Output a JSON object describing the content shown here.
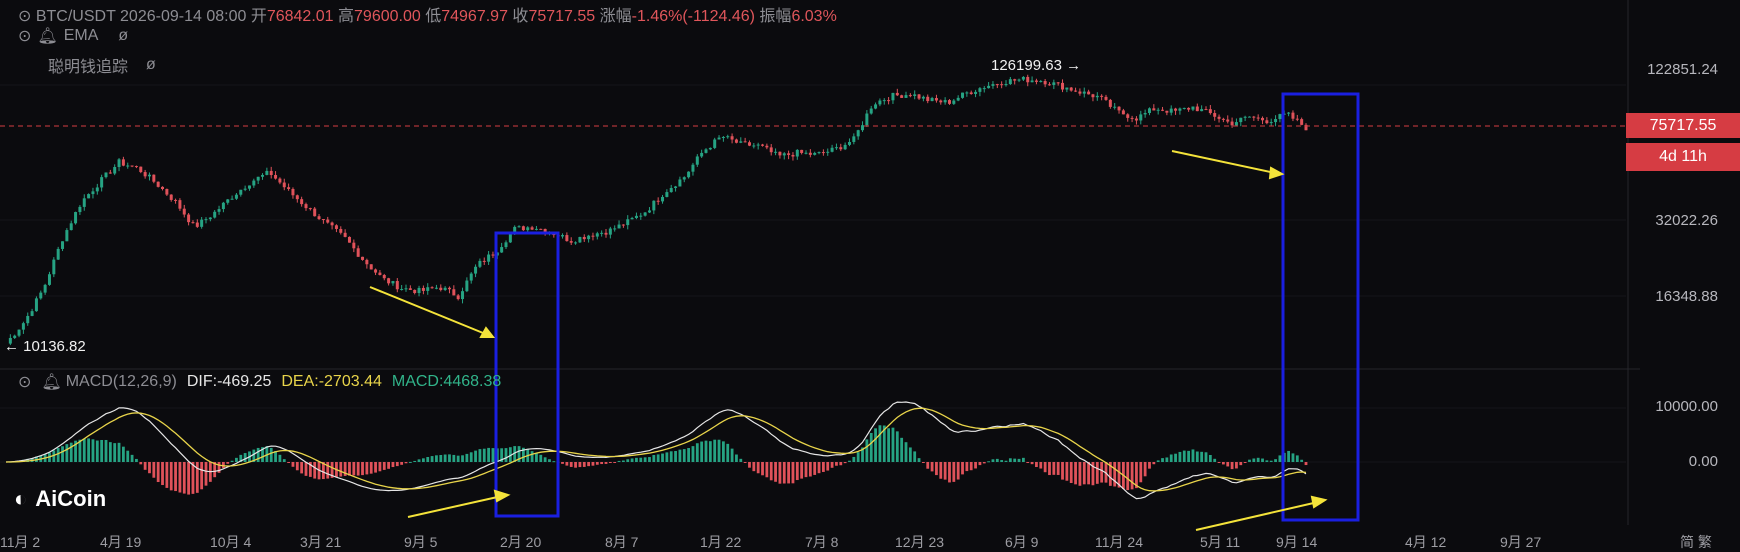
{
  "header": {
    "symbol": "BTC/USDT",
    "datetime": "2026-09-14 08:00",
    "open_label": "开",
    "open": "76842.01",
    "high_label": "高",
    "high": "79600.00",
    "low_label": "低",
    "low": "74967.97",
    "close_label": "收",
    "close": "75717.55",
    "change_label": "涨幅",
    "change": "-1.46%(-1124.46)",
    "amplitude_label": "振幅",
    "amplitude": "6.03%"
  },
  "indicators": {
    "ema_label": "EMA",
    "smart_money_label": "聪明钱追踪",
    "macd_label": "MACD(12,26,9)",
    "dif": "DIF:-469.25",
    "dea": "DEA:-2703.44",
    "macd": "MACD:4468.38"
  },
  "price_axis": {
    "ticks": [
      "122851.24",
      "32022.26",
      "16348.88"
    ],
    "last_price": "75717.55",
    "countdown": "4d 11h"
  },
  "macd_axis": {
    "ticks": [
      "10000.00",
      "0.00"
    ]
  },
  "annotations": {
    "high_marker": "126199.63 →",
    "low_marker": "← 10136.82"
  },
  "x_axis": {
    "ticks": [
      "11月 2",
      "4月 19",
      "10月 4",
      "3月 21",
      "9月 5",
      "2月 20",
      "8月 7",
      "1月 22",
      "7月 8",
      "12月 23",
      "6月 9",
      "11月 24",
      "5月 11",
      "9月 14",
      "4月 12",
      "9月 27",
      "简 繁"
    ]
  },
  "brand": {
    "name": "AiCoin"
  },
  "colors": {
    "up": "#26a383",
    "down": "#e0525a",
    "box": "#1418d8",
    "arrow": "#f4e33a",
    "dif": "#e8e8e8",
    "dea": "#e8d44a"
  },
  "chart_data": {
    "type": "candlestick",
    "price_scale": "log",
    "price_close_approx": [
      10137,
      12500,
      17000,
      27000,
      38000,
      46000,
      55000,
      52000,
      45000,
      38000,
      30000,
      34000,
      40000,
      46000,
      50000,
      42000,
      36000,
      31000,
      27000,
      22000,
      18500,
      17000,
      16500,
      17200,
      15800,
      21000,
      24000,
      29500,
      30200,
      28500,
      26500,
      28000,
      29000,
      31500,
      35000,
      42000,
      48000,
      61000,
      70000,
      65000,
      64000,
      58000,
      60000,
      59000,
      62000,
      68000,
      95000,
      102000,
      104000,
      98000,
      96000,
      105000,
      112000,
      117000,
      119000,
      118000,
      112000,
      106000,
      101000,
      88000,
      83000,
      91000,
      88000,
      92000,
      86000,
      79000,
      84000,
      81000,
      86000,
      76000
    ],
    "macd_series": [
      "DIF",
      "DEA",
      "MACD"
    ]
  }
}
